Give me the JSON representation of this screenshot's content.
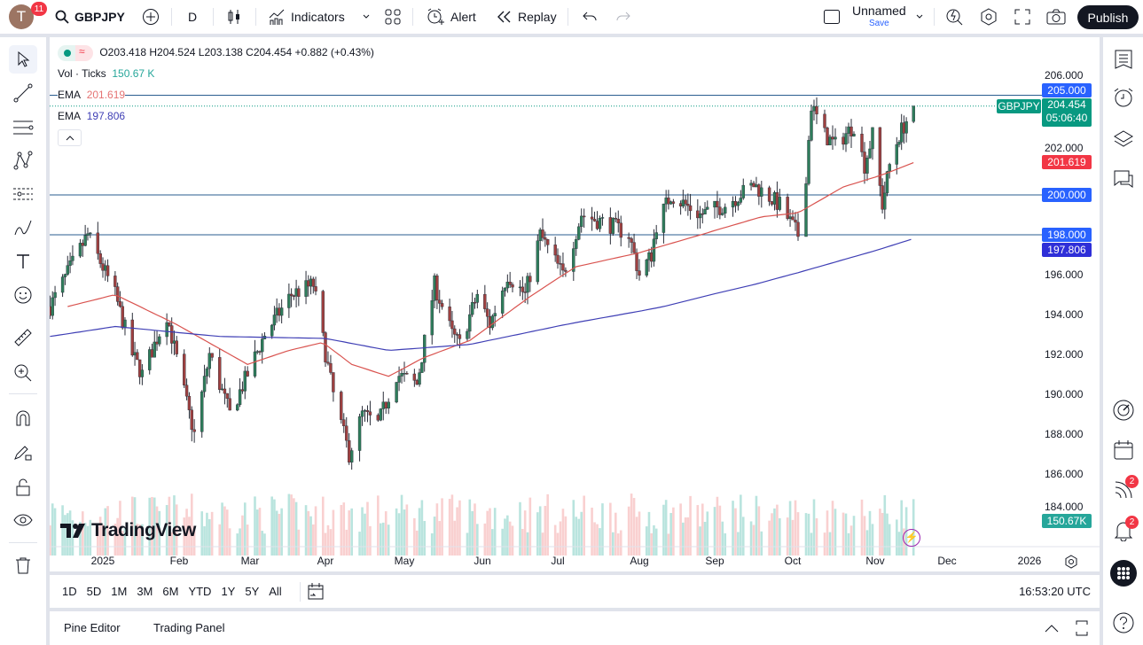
{
  "topbar": {
    "avatar_letter": "T",
    "notifications": "11",
    "symbol": "GBPJPY",
    "interval": "D",
    "indicators": "Indicators",
    "alert": "Alert",
    "replay": "Replay",
    "layout_name": "Unnamed",
    "save": "Save",
    "publish": "Publish"
  },
  "legend": {
    "ohlc": "O203.418 H204.524 L203.138 C204.454 +0.882 (+0.43%)",
    "vol_label": "Vol · Ticks",
    "vol_value": "150.67 K",
    "ema1_label": "EMA",
    "ema1_value": "201.619",
    "ema2_label": "EMA",
    "ema2_value": "197.806"
  },
  "colors": {
    "up": "#089981",
    "down": "#f23645",
    "ema_fast": "#e57373",
    "ema_slow": "#3f3fb5",
    "hline": "#2a5d8f",
    "level_badge": "#2962ff",
    "accent": "#2962ff"
  },
  "price_axis": {
    "ticks": [
      "206.000",
      "202.000",
      "196.000",
      "194.000",
      "192.000",
      "190.000",
      "188.000",
      "186.000",
      "184.000"
    ],
    "levels": [
      "205.000",
      "200.000",
      "198.000"
    ],
    "last_price": "204.454",
    "countdown": "05:06:40",
    "symbol_tag": "GBPJPY",
    "ema_fast": "201.619",
    "ema_slow": "197.806",
    "volume": "150.67K"
  },
  "time_axis": {
    "labels": [
      "2025",
      "Feb",
      "Mar",
      "Apr",
      "May",
      "Jun",
      "Jul",
      "Aug",
      "Sep",
      "Oct",
      "Nov",
      "Dec",
      "2026"
    ]
  },
  "range_bar": {
    "ranges": [
      "1D",
      "5D",
      "1M",
      "3M",
      "6M",
      "YTD",
      "1Y",
      "5Y",
      "All"
    ],
    "clock": "16:53:20 UTC"
  },
  "bottom_panel": {
    "tabs": [
      "Pine Editor",
      "Trading Panel"
    ]
  },
  "watermark": "TradingView",
  "right_badges": {
    "feed": "2",
    "alerts": "2"
  },
  "chart_data": {
    "type": "candlestick",
    "symbol": "GBPJPY",
    "interval": "D",
    "ylim": [
      184,
      206.5
    ],
    "horizontal_levels": [
      205,
      200,
      198
    ],
    "last_close": 204.454,
    "close_path": [
      [
        "2024-12-11",
        194.4
      ],
      [
        "2024-12-26",
        198
      ],
      [
        "2025-01-06",
        195
      ],
      [
        "2025-01-13",
        192
      ],
      [
        "2025-01-17",
        191
      ],
      [
        "2025-01-27",
        194
      ],
      [
        "2025-02-05",
        189
      ],
      [
        "2025-02-07",
        188
      ],
      [
        "2025-02-13",
        192
      ],
      [
        "2025-02-21",
        189
      ],
      [
        "2025-03-07",
        193
      ],
      [
        "2025-03-18",
        195
      ],
      [
        "2025-03-27",
        195.5
      ],
      [
        "2025-04-04",
        190
      ],
      [
        "2025-04-10",
        187
      ],
      [
        "2025-04-15",
        189
      ],
      [
        "2025-04-21",
        188.5
      ],
      [
        "2025-04-28",
        191
      ],
      [
        "2025-05-06",
        190.5
      ],
      [
        "2025-05-13",
        195.5
      ],
      [
        "2025-05-20",
        193
      ],
      [
        "2025-05-23",
        192.5
      ],
      [
        "2025-05-30",
        195
      ],
      [
        "2025-06-04",
        193.5
      ],
      [
        "2025-06-11",
        196
      ],
      [
        "2025-06-18",
        195
      ],
      [
        "2025-06-24",
        198
      ],
      [
        "2025-07-03",
        196
      ],
      [
        "2025-07-10",
        199
      ],
      [
        "2025-07-21",
        198.5
      ],
      [
        "2025-07-28",
        198
      ],
      [
        "2025-08-01",
        196
      ],
      [
        "2025-08-06",
        197
      ],
      [
        "2025-08-08",
        198.5
      ],
      [
        "2025-08-14",
        200
      ],
      [
        "2025-08-26",
        199
      ],
      [
        "2025-09-05",
        199.5
      ],
      [
        "2025-09-16",
        200.5
      ],
      [
        "2025-09-26",
        199.5
      ],
      [
        "2025-10-03",
        198
      ],
      [
        "2025-10-06",
        201
      ],
      [
        "2025-10-08",
        204.5
      ],
      [
        "2025-10-13",
        203
      ],
      [
        "2025-10-17",
        202.5
      ],
      [
        "2025-10-24",
        203.5
      ],
      [
        "2025-10-28",
        201.5
      ],
      [
        "2025-10-31",
        203
      ],
      [
        "2025-11-04",
        199.5
      ],
      [
        "2025-11-07",
        201.5
      ],
      [
        "2025-11-11",
        203
      ],
      [
        "2025-11-17",
        204.454
      ]
    ],
    "ema_fast_path": [
      [
        "2024-12-18",
        194.4
      ],
      [
        "2025-01-06",
        195
      ],
      [
        "2025-01-31",
        193.5
      ],
      [
        "2025-02-28",
        191.5
      ],
      [
        "2025-03-17",
        192.2
      ],
      [
        "2025-03-31",
        192.6
      ],
      [
        "2025-04-11",
        191.5
      ],
      [
        "2025-04-25",
        190.9
      ],
      [
        "2025-05-08",
        191.8
      ],
      [
        "2025-05-27",
        192.7
      ],
      [
        "2025-06-20",
        194.9
      ],
      [
        "2025-07-08",
        196.4
      ],
      [
        "2025-08-01",
        197.1
      ],
      [
        "2025-08-29",
        198.1
      ],
      [
        "2025-09-19",
        198.9
      ],
      [
        "2025-10-03",
        199.1
      ],
      [
        "2025-10-20",
        200.4
      ],
      [
        "2025-11-06",
        201.1
      ],
      [
        "2025-11-17",
        201.619
      ]
    ],
    "ema_slow_path": [
      [
        "2024-12-11",
        192.9
      ],
      [
        "2025-01-06",
        193.4
      ],
      [
        "2025-02-17",
        192.9
      ],
      [
        "2025-04-01",
        192.8
      ],
      [
        "2025-04-25",
        192.2
      ],
      [
        "2025-05-27",
        192.5
      ],
      [
        "2025-07-08",
        193.6
      ],
      [
        "2025-08-11",
        194.4
      ],
      [
        "2025-09-16",
        195.5
      ],
      [
        "2025-10-03",
        196.1
      ],
      [
        "2025-10-24",
        196.9
      ],
      [
        "2025-11-17",
        197.806
      ]
    ]
  }
}
